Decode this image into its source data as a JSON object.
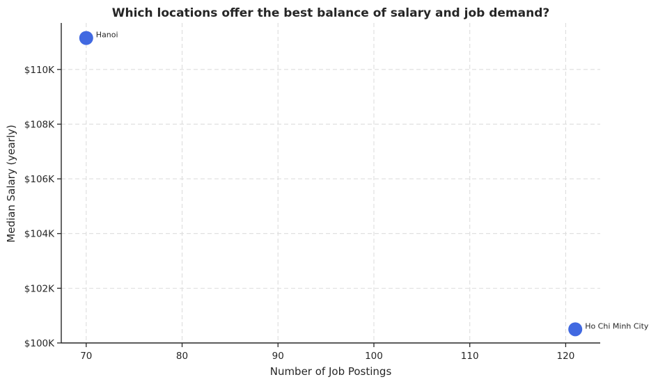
{
  "chart_data": {
    "type": "scatter",
    "title": "Which locations offer the best balance of salary and job demand?",
    "xlabel": "Number of Job Postings",
    "ylabel": "Median Salary (yearly)",
    "xlim": [
      67.4,
      123.6
    ],
    "ylim": [
      100000,
      111700
    ],
    "x_ticks": [
      70,
      80,
      90,
      100,
      110,
      120
    ],
    "x_tick_labels": [
      "70",
      "80",
      "90",
      "100",
      "110",
      "120"
    ],
    "y_ticks": [
      100000,
      102000,
      104000,
      106000,
      108000,
      110000
    ],
    "y_tick_labels": [
      "$100K",
      "$102K",
      "$104K",
      "$106K",
      "$108K",
      "$110K"
    ],
    "grid": true,
    "point_color": "#4169E1",
    "points": [
      {
        "label": "Hanoi",
        "x": 70,
        "y": 111150
      },
      {
        "label": "Ho Chi Minh City",
        "x": 121,
        "y": 100500
      }
    ]
  }
}
